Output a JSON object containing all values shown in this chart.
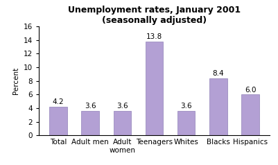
{
  "title": "Unemployment rates, January 2001\n(seasonally adjusted)",
  "categories": [
    "Total",
    "Adult men",
    "Adult\nwomen",
    "Teenagers",
    "Whites",
    "Blacks",
    "Hispanics"
  ],
  "values": [
    4.2,
    3.6,
    3.6,
    13.8,
    3.6,
    8.4,
    6.0
  ],
  "bar_color": "#b3a0d4",
  "bar_edgecolor": "#9080b8",
  "ylabel": "Percent",
  "ylim": [
    0,
    16
  ],
  "yticks": [
    0,
    2,
    4,
    6,
    8,
    10,
    12,
    14,
    16
  ],
  "title_fontsize": 9,
  "label_fontsize": 7.5,
  "tick_fontsize": 7.5,
  "value_fontsize": 7.5,
  "background_color": "#ffffff"
}
